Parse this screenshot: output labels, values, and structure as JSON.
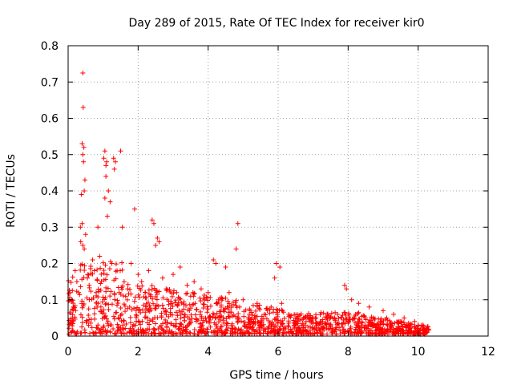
{
  "chart_data": {
    "type": "scatter",
    "title": "Day 289 of 2015, Rate Of TEC Index for receiver kir0",
    "xlabel": "GPS time / hours",
    "ylabel": "ROTI / TECUs",
    "xlim": [
      0,
      12
    ],
    "ylim": [
      0,
      0.8
    ],
    "xticks": [
      0,
      2,
      4,
      6,
      8,
      10,
      12
    ],
    "yticks": [
      0,
      0.1,
      0.2,
      0.3,
      0.4,
      0.5,
      0.6,
      0.7,
      0.8
    ],
    "xtick_labels": [
      "0",
      "2",
      "4",
      "6",
      "8",
      "10",
      "12"
    ],
    "ytick_labels": [
      "0",
      "0.1",
      "0.2",
      "0.3",
      "0.4",
      "0.5",
      "0.6",
      "0.7",
      "0.8"
    ],
    "grid": true,
    "marker": "+",
    "series": [
      {
        "name": "ROTI",
        "color": "#ff0000",
        "points": [
          [
            0.42,
            0.725
          ],
          [
            0.43,
            0.63
          ],
          [
            0.4,
            0.53
          ],
          [
            0.45,
            0.52
          ],
          [
            0.42,
            0.5
          ],
          [
            0.44,
            0.48
          ],
          [
            0.38,
            0.39
          ],
          [
            0.46,
            0.4
          ],
          [
            0.48,
            0.43
          ],
          [
            0.35,
            0.3
          ],
          [
            0.4,
            0.31
          ],
          [
            0.5,
            0.28
          ],
          [
            0.36,
            0.26
          ],
          [
            0.42,
            0.25
          ],
          [
            0.46,
            0.24
          ],
          [
            1.05,
            0.51
          ],
          [
            1.02,
            0.49
          ],
          [
            1.1,
            0.48
          ],
          [
            1.08,
            0.47
          ],
          [
            1.3,
            0.49
          ],
          [
            1.35,
            0.48
          ],
          [
            1.32,
            0.46
          ],
          [
            1.5,
            0.51
          ],
          [
            1.08,
            0.44
          ],
          [
            1.15,
            0.4
          ],
          [
            1.05,
            0.38
          ],
          [
            1.2,
            0.37
          ],
          [
            1.12,
            0.33
          ],
          [
            1.55,
            0.3
          ],
          [
            0.85,
            0.3
          ],
          [
            1.9,
            0.35
          ],
          [
            2.4,
            0.32
          ],
          [
            2.45,
            0.31
          ],
          [
            2.55,
            0.27
          ],
          [
            2.6,
            0.26
          ],
          [
            2.5,
            0.25
          ],
          [
            4.85,
            0.31
          ],
          [
            4.8,
            0.24
          ],
          [
            4.15,
            0.21
          ],
          [
            4.22,
            0.2
          ],
          [
            4.5,
            0.19
          ],
          [
            5.95,
            0.2
          ],
          [
            6.05,
            0.19
          ],
          [
            5.9,
            0.16
          ],
          [
            6.1,
            0.09
          ],
          [
            6.3,
            0.06
          ],
          [
            7.0,
            0.05
          ],
          [
            7.4,
            0.05
          ],
          [
            7.7,
            0.06
          ],
          [
            7.9,
            0.14
          ],
          [
            7.95,
            0.13
          ],
          [
            8.1,
            0.1
          ],
          [
            8.3,
            0.09
          ],
          [
            8.6,
            0.08
          ],
          [
            9.0,
            0.07
          ],
          [
            9.3,
            0.06
          ],
          [
            9.6,
            0.05
          ],
          [
            9.9,
            0.04
          ],
          [
            10.1,
            0.03
          ],
          [
            10.25,
            0.02
          ],
          [
            0.05,
            0.12
          ],
          [
            0.1,
            0.1
          ],
          [
            0.15,
            0.08
          ],
          [
            0.2,
            0.18
          ],
          [
            0.25,
            0.15
          ],
          [
            0.3,
            0.12
          ],
          [
            0.55,
            0.16
          ],
          [
            0.6,
            0.14
          ],
          [
            0.7,
            0.21
          ],
          [
            0.75,
            0.18
          ],
          [
            0.8,
            0.12
          ],
          [
            0.9,
            0.22
          ],
          [
            0.95,
            0.15
          ],
          [
            1.25,
            0.2
          ],
          [
            1.4,
            0.18
          ],
          [
            1.6,
            0.15
          ],
          [
            1.7,
            0.13
          ],
          [
            1.8,
            0.2
          ],
          [
            2.0,
            0.17
          ],
          [
            2.1,
            0.15
          ],
          [
            2.2,
            0.12
          ],
          [
            2.3,
            0.18
          ],
          [
            2.7,
            0.16
          ],
          [
            2.8,
            0.13
          ],
          [
            3.0,
            0.17
          ],
          [
            3.1,
            0.12
          ],
          [
            3.2,
            0.19
          ],
          [
            3.4,
            0.14
          ],
          [
            3.5,
            0.11
          ],
          [
            3.6,
            0.15
          ],
          [
            3.8,
            0.13
          ],
          [
            3.9,
            0.1
          ],
          [
            4.0,
            0.12
          ],
          [
            4.3,
            0.1
          ],
          [
            4.6,
            0.12
          ],
          [
            4.9,
            0.08
          ],
          [
            5.0,
            0.1
          ],
          [
            5.2,
            0.07
          ],
          [
            5.4,
            0.09
          ],
          [
            5.6,
            0.06
          ],
          [
            5.8,
            0.08
          ],
          [
            6.5,
            0.05
          ],
          [
            6.8,
            0.04
          ],
          [
            7.2,
            0.04
          ],
          [
            8.5,
            0.05
          ],
          [
            9.1,
            0.05
          ],
          [
            9.5,
            0.04
          ],
          [
            10.0,
            0.03
          ],
          [
            10.2,
            0.01
          ]
        ]
      }
    ]
  }
}
